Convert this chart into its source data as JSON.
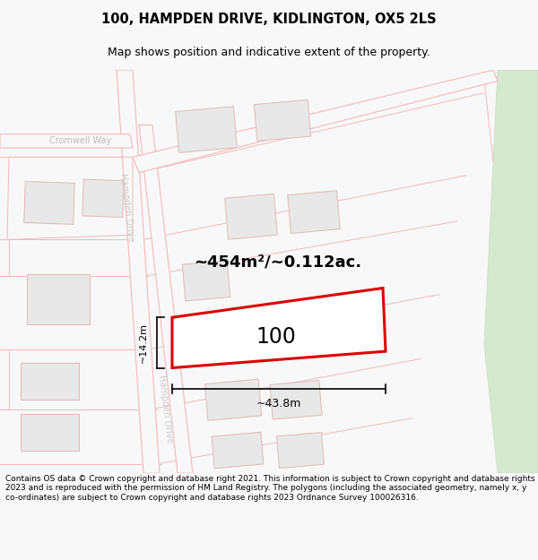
{
  "title_line1": "100, HAMPDEN DRIVE, KIDLINGTON, OX5 2LS",
  "title_line2": "Map shows position and indicative extent of the property.",
  "copyright_text": "Contains OS data © Crown copyright and database right 2021. This information is subject to Crown copyright and database rights 2023 and is reproduced with the permission of HM Land Registry. The polygons (including the associated geometry, namely x, y co-ordinates) are subject to Crown copyright and database rights 2023 Ordnance Survey 100026316.",
  "area_label": "~454m²/~0.112ac.",
  "number_label": "100",
  "dim_height": "~14.2m",
  "dim_width": "~43.8m",
  "road_label_1": "Cromwell Way",
  "road_label_2": "Hampden Drive",
  "road_label_3": "Hampden Drive",
  "bg_color": "#f8f8f8",
  "map_bg": "#ffffff",
  "road_color": "#f5b8b8",
  "property_edge_color": "#dd0000",
  "property_fill": "#ffffff",
  "grey_block_color": "#e8e8e8",
  "grey_block_edge": "#e0b8b8",
  "green_patch_color": "#d5e8d0",
  "green_patch_edge": "#c8ddc0",
  "title_fontsize": 10.5,
  "subtitle_fontsize": 9,
  "copyright_fontsize": 6.5
}
